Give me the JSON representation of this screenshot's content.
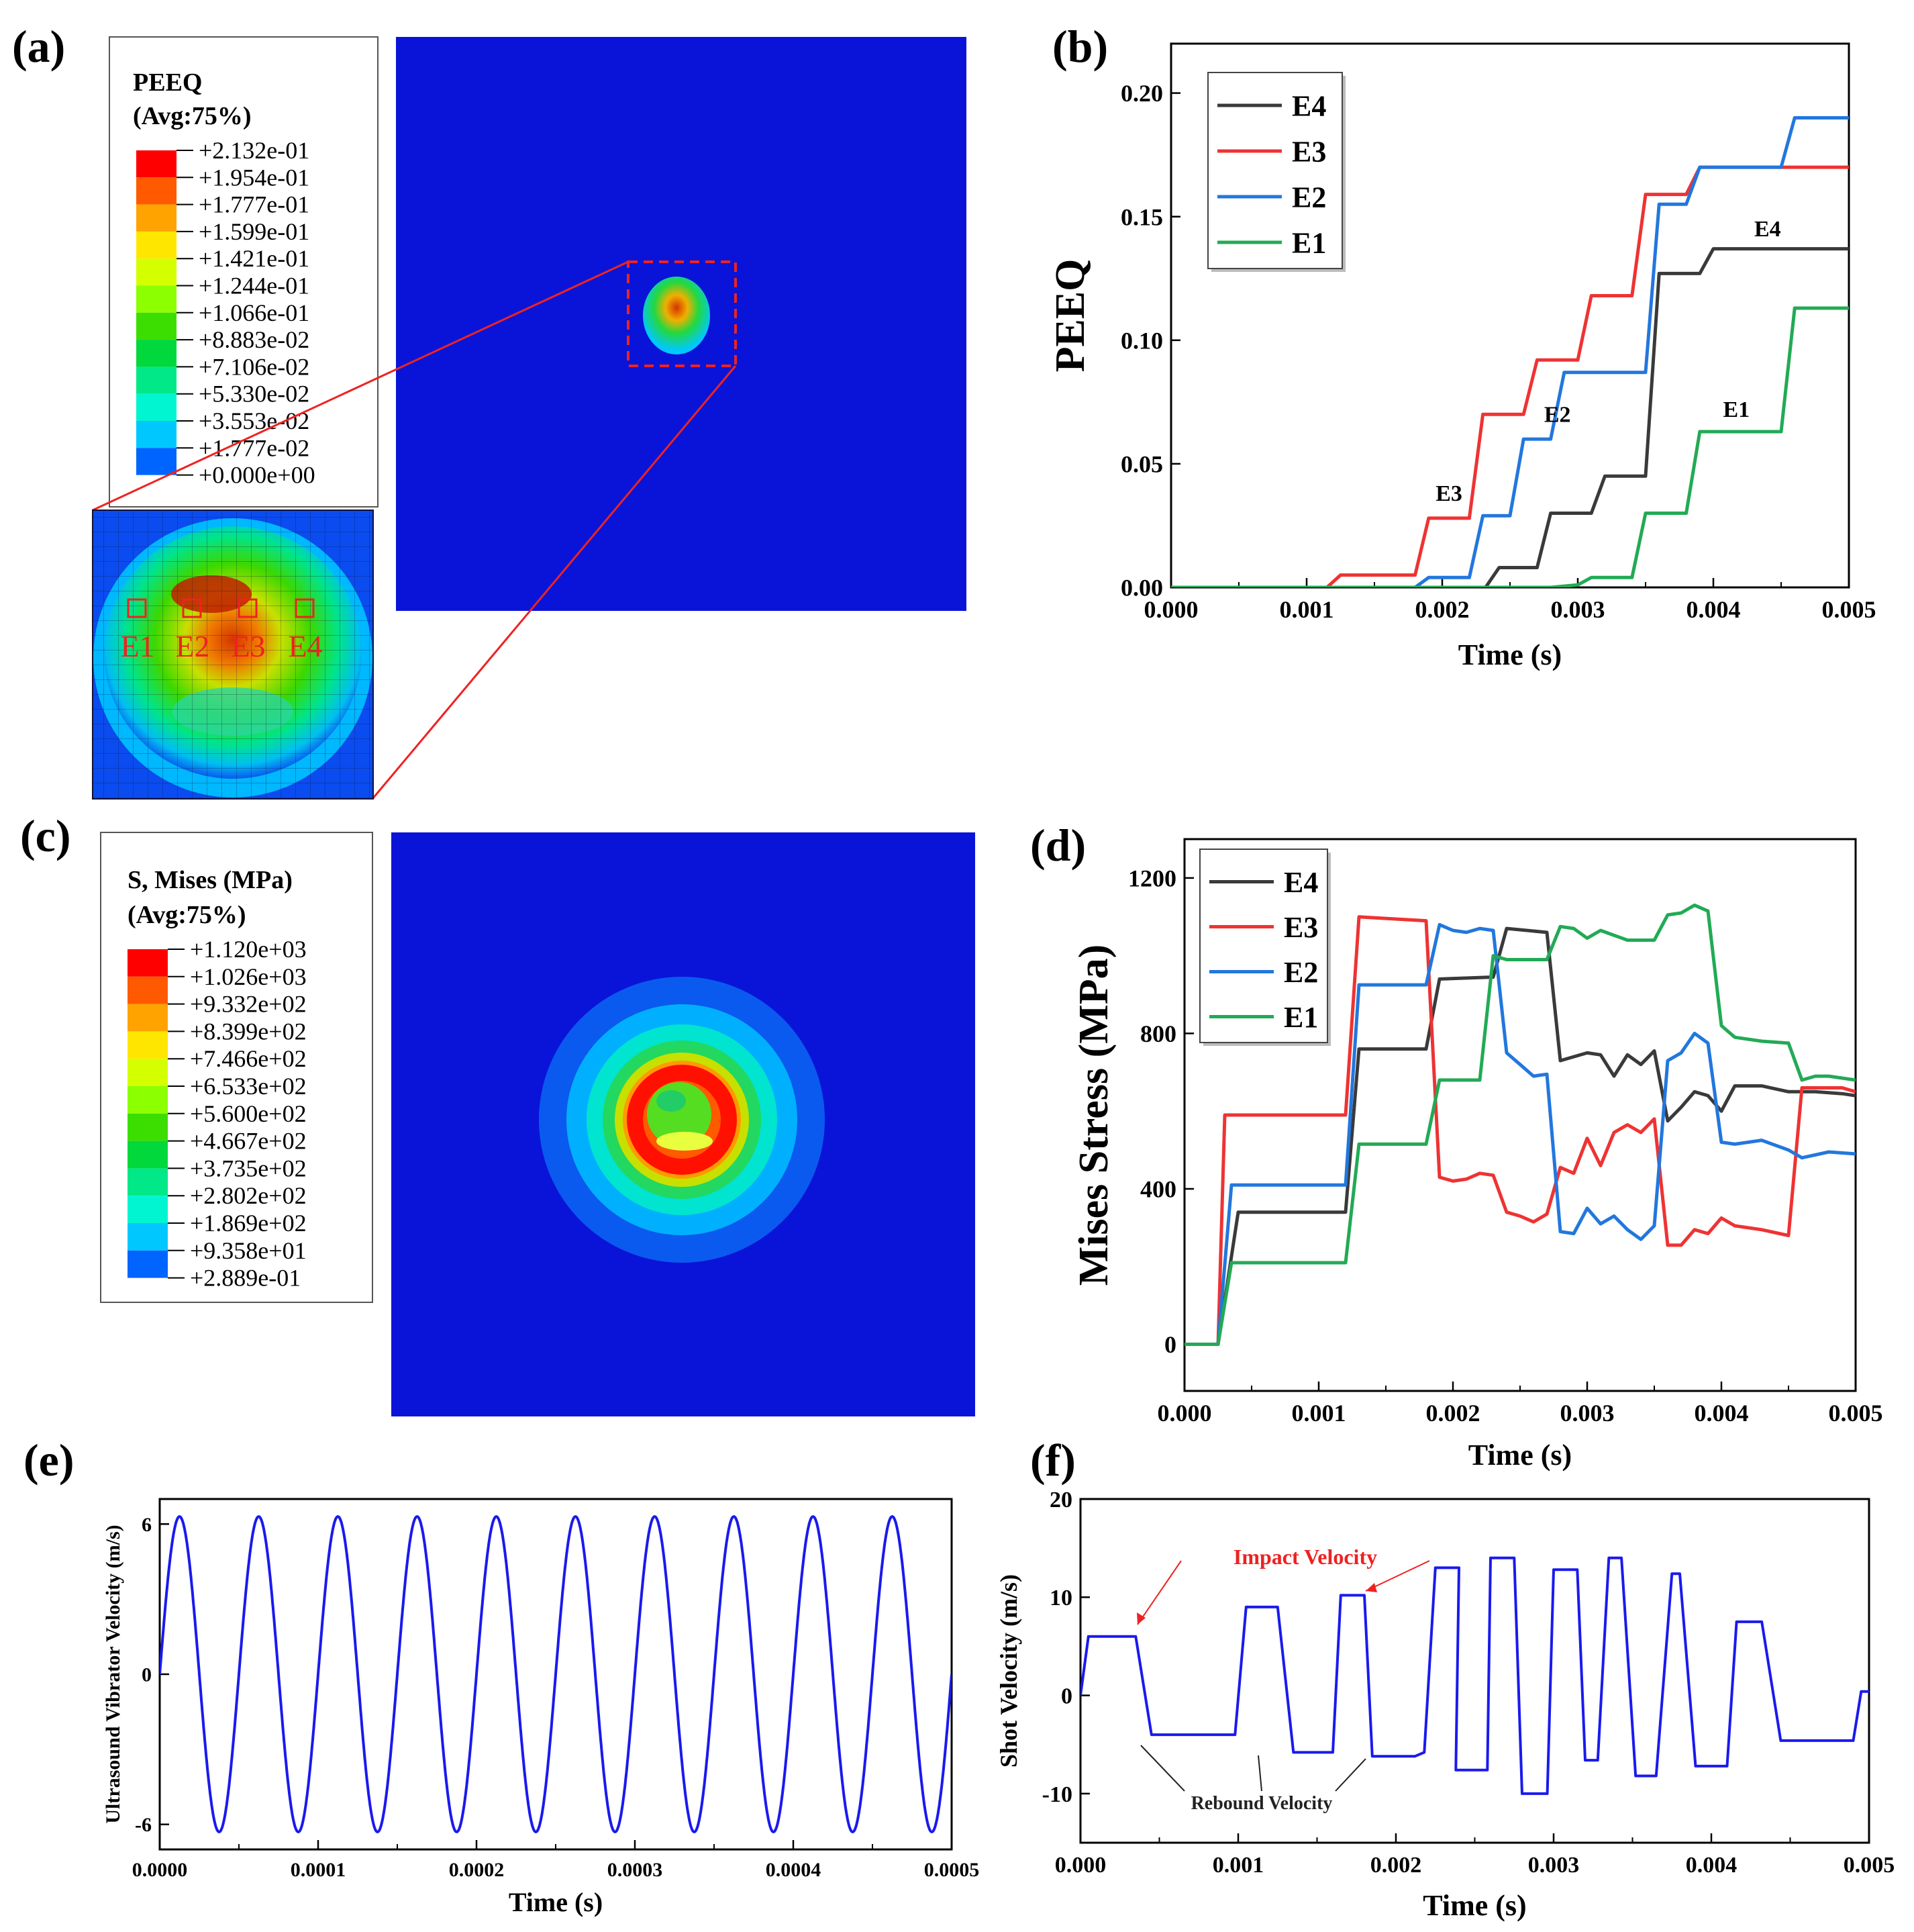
{
  "colors": {
    "E4": "#3a3a3a",
    "E3": "#ee3333",
    "E2": "#2277dd",
    "E1": "#22aa55",
    "wave": "#1a1aee",
    "contour_bg": "#0a14d8",
    "annotation_red": "#ee2222"
  },
  "panels": {
    "a": {
      "label": "(a)",
      "legend_title_1": "PEEQ",
      "legend_title_2": "(Avg:75%)",
      "contour_values": [
        "+2.132e-01",
        "+1.954e-01",
        "+1.777e-01",
        "+1.599e-01",
        "+1.421e-01",
        "+1.244e-01",
        "+1.066e-01",
        "+8.883e-02",
        "+7.106e-02",
        "+5.330e-02",
        "+3.553e-02",
        "+1.777e-02",
        "+0.000e+00"
      ],
      "contour_colors": [
        "#ff0000",
        "#ff5a00",
        "#ffa300",
        "#ffe600",
        "#d4ff00",
        "#8cff00",
        "#3cdd00",
        "#00d83c",
        "#00e887",
        "#00f5d0",
        "#00c8ff",
        "#0064ff",
        "#0000ff"
      ],
      "element_labels": [
        "E1",
        "E2",
        "E3",
        "E4"
      ]
    },
    "c": {
      "label": "(c)",
      "legend_title_1": "S, Mises (MPa)",
      "legend_title_2": "(Avg:75%)",
      "contour_values": [
        "+1.120e+03",
        "+1.026e+03",
        "+9.332e+02",
        "+8.399e+02",
        "+7.466e+02",
        "+6.533e+02",
        "+5.600e+02",
        "+4.667e+02",
        "+3.735e+02",
        "+2.802e+02",
        "+1.869e+02",
        "+9.358e+01",
        "+2.889e-01"
      ],
      "contour_colors": [
        "#ff0000",
        "#ff5a00",
        "#ffa300",
        "#ffe600",
        "#d4ff00",
        "#8cff00",
        "#3cdd00",
        "#00d83c",
        "#00e887",
        "#00f5d0",
        "#00c8ff",
        "#0064ff",
        "#0000ff"
      ]
    }
  },
  "chart_data": [
    {
      "id": "b",
      "panel_label": "(b)",
      "type": "line",
      "xlabel": "Time (s)",
      "ylabel": "PEEQ",
      "xlim": [
        0,
        0.005
      ],
      "ylim": [
        0,
        0.22
      ],
      "xticks": [
        "0.000",
        "0.001",
        "0.002",
        "0.003",
        "0.004",
        "0.005"
      ],
      "yticks": [
        "0.00",
        "0.05",
        "0.10",
        "0.15",
        "0.20"
      ],
      "legend": "top-left",
      "series": [
        {
          "name": "E4",
          "x": [
            0,
            0.00232,
            0.00242,
            0.0025,
            0.0027,
            0.0028,
            0.0031,
            0.0032,
            0.0035,
            0.0036,
            0.0039,
            0.004,
            0.0045,
            0.005
          ],
          "y": [
            0,
            0,
            0.008,
            0.008,
            0.008,
            0.03,
            0.03,
            0.045,
            0.045,
            0.127,
            0.127,
            0.137,
            0.137,
            0.137
          ]
        },
        {
          "name": "E3",
          "x": [
            0,
            0.00115,
            0.00125,
            0.0018,
            0.0019,
            0.0022,
            0.0023,
            0.0026,
            0.0027,
            0.003,
            0.0031,
            0.0034,
            0.0035,
            0.0038,
            0.0039,
            0.0045,
            0.005
          ],
          "y": [
            0,
            0,
            0.005,
            0.005,
            0.028,
            0.028,
            0.07,
            0.07,
            0.092,
            0.092,
            0.118,
            0.118,
            0.159,
            0.159,
            0.17,
            0.17,
            0.17
          ]
        },
        {
          "name": "E2",
          "x": [
            0,
            0.0018,
            0.0019,
            0.0022,
            0.0023,
            0.0025,
            0.0026,
            0.0028,
            0.0029,
            0.0031,
            0.0032,
            0.0035,
            0.0036,
            0.0038,
            0.0039,
            0.0045,
            0.0046,
            0.005
          ],
          "y": [
            0,
            0,
            0.004,
            0.004,
            0.029,
            0.029,
            0.06,
            0.06,
            0.087,
            0.087,
            0.087,
            0.087,
            0.155,
            0.155,
            0.17,
            0.17,
            0.19,
            0.19
          ]
        },
        {
          "name": "E1",
          "x": [
            0,
            0.0028,
            0.003,
            0.0031,
            0.0034,
            0.0035,
            0.0038,
            0.0039,
            0.0045,
            0.0046,
            0.005
          ],
          "y": [
            0,
            0,
            0.001,
            0.004,
            0.004,
            0.03,
            0.03,
            0.063,
            0.063,
            0.113,
            0.113
          ]
        }
      ],
      "annotations": [
        {
          "text": "E3",
          "x": 0.00205,
          "y": 0.035
        },
        {
          "text": "E2",
          "x": 0.00285,
          "y": 0.067
        },
        {
          "text": "E4",
          "x": 0.0044,
          "y": 0.142
        },
        {
          "text": "E1",
          "x": 0.00417,
          "y": 0.069
        }
      ]
    },
    {
      "id": "d",
      "panel_label": "(d)",
      "type": "line",
      "xlabel": "Time (s)",
      "ylabel": "Mises Stress (MPa)",
      "xlim": [
        0,
        0.005
      ],
      "ylim": [
        -120,
        1300
      ],
      "xticks": [
        "0.000",
        "0.001",
        "0.002",
        "0.003",
        "0.004",
        "0.005"
      ],
      "yticks": [
        "0",
        "400",
        "800",
        "1200"
      ],
      "legend": "top-left",
      "series": [
        {
          "name": "E4",
          "x": [
            0,
            0.00025,
            0.0004,
            0.0012,
            0.0013,
            0.0018,
            0.0019,
            0.0023,
            0.0024,
            0.0027,
            0.0028,
            0.003,
            0.0031,
            0.0032,
            0.0033,
            0.0034,
            0.0035,
            0.0036,
            0.0037,
            0.0038,
            0.0039,
            0.004,
            0.0041,
            0.0043,
            0.0045,
            0.0047,
            0.0049,
            0.005
          ],
          "y": [
            0,
            0,
            340,
            340,
            760,
            760,
            940,
            945,
            1070,
            1060,
            730,
            750,
            745,
            690,
            745,
            720,
            755,
            575,
            610,
            650,
            640,
            600,
            665,
            665,
            650,
            650,
            645,
            640
          ]
        },
        {
          "name": "E3",
          "x": [
            0,
            0.00025,
            0.0003,
            0.0012,
            0.0013,
            0.0018,
            0.0019,
            0.002,
            0.0021,
            0.0022,
            0.0023,
            0.0024,
            0.0025,
            0.0026,
            0.0027,
            0.0028,
            0.0029,
            0.003,
            0.0031,
            0.0032,
            0.0033,
            0.0034,
            0.0035,
            0.0036,
            0.0037,
            0.0038,
            0.0039,
            0.004,
            0.0041,
            0.0043,
            0.0045,
            0.0046,
            0.0047,
            0.0049,
            0.005
          ],
          "y": [
            0,
            0,
            590,
            590,
            1100,
            1090,
            430,
            420,
            425,
            440,
            435,
            340,
            330,
            315,
            335,
            455,
            440,
            530,
            460,
            545,
            565,
            545,
            580,
            255,
            255,
            295,
            285,
            325,
            305,
            295,
            280,
            660,
            660,
            660,
            650
          ]
        },
        {
          "name": "E2",
          "x": [
            0,
            0.00025,
            0.00035,
            0.0012,
            0.0013,
            0.0018,
            0.0019,
            0.002,
            0.0021,
            0.0022,
            0.0023,
            0.0024,
            0.0025,
            0.0026,
            0.0027,
            0.0028,
            0.0029,
            0.003,
            0.0031,
            0.0032,
            0.0033,
            0.0034,
            0.0035,
            0.0036,
            0.0037,
            0.0038,
            0.0039,
            0.004,
            0.0041,
            0.0043,
            0.0045,
            0.0046,
            0.0048,
            0.005
          ],
          "y": [
            0,
            0,
            410,
            410,
            925,
            925,
            1080,
            1065,
            1060,
            1070,
            1065,
            750,
            720,
            690,
            695,
            290,
            285,
            350,
            310,
            330,
            295,
            270,
            305,
            730,
            750,
            800,
            775,
            520,
            515,
            525,
            500,
            480,
            495,
            490
          ]
        },
        {
          "name": "E1",
          "x": [
            0,
            0.00025,
            0.00035,
            0.0012,
            0.0013,
            0.0018,
            0.0019,
            0.0022,
            0.0023,
            0.0024,
            0.0027,
            0.0028,
            0.0029,
            0.003,
            0.0031,
            0.0033,
            0.0035,
            0.0036,
            0.0037,
            0.0038,
            0.0039,
            0.004,
            0.0041,
            0.0043,
            0.0045,
            0.0046,
            0.0047,
            0.0048,
            0.005
          ],
          "y": [
            0,
            0,
            210,
            210,
            515,
            515,
            680,
            680,
            1000,
            990,
            990,
            1075,
            1070,
            1045,
            1065,
            1040,
            1040,
            1105,
            1110,
            1130,
            1115,
            820,
            790,
            780,
            775,
            680,
            690,
            690,
            680
          ]
        }
      ]
    },
    {
      "id": "e",
      "panel_label": "(e)",
      "type": "line",
      "xlabel": "Time (s)",
      "ylabel": "Ultrasound Vibrator Velocity (m/s)",
      "xlim": [
        0,
        0.0005
      ],
      "ylim": [
        -7,
        7
      ],
      "xticks": [
        "0.0000",
        "0.0001",
        "0.0002",
        "0.0003",
        "0.0004",
        "0.0005"
      ],
      "yticks": [
        "-6",
        "0",
        "6"
      ],
      "function": {
        "kind": "sine",
        "amplitude": 6.3,
        "frequency_hz": 20000
      },
      "series": [
        {
          "name": "",
          "values": []
        }
      ]
    },
    {
      "id": "f",
      "panel_label": "(f)",
      "type": "line",
      "xlabel": "Time (s)",
      "ylabel": "Shot Velocity (m/s)",
      "xlim": [
        0,
        0.005
      ],
      "ylim": [
        -15,
        20
      ],
      "xticks": [
        "0.000",
        "0.001",
        "0.002",
        "0.003",
        "0.004",
        "0.005"
      ],
      "yticks": [
        "-10",
        "0",
        "10",
        "20"
      ],
      "series": [
        {
          "name": "",
          "x": [
            0,
            5e-05,
            0.00035,
            0.00045,
            0.00098,
            0.00105,
            0.00125,
            0.00135,
            0.0016,
            0.00165,
            0.0018,
            0.00185,
            0.00212,
            0.00218,
            0.00225,
            0.0024,
            0.00238,
            0.00258,
            0.0026,
            0.00275,
            0.0028,
            0.00296,
            0.003,
            0.00315,
            0.0032,
            0.00328,
            0.00335,
            0.00343,
            0.00352,
            0.0036,
            0.00365,
            0.00375,
            0.0038,
            0.0039,
            0.00395,
            0.0041,
            0.00416,
            0.00432,
            0.00444,
            0.00455,
            0.00462,
            0.0049,
            0.00495,
            0.005
          ],
          "y": [
            0,
            6,
            6,
            -4,
            -4,
            9,
            9,
            -5.8,
            -5.8,
            10.2,
            10.2,
            -6.2,
            -6.2,
            -5.8,
            13,
            13,
            -7.6,
            -7.6,
            14,
            14,
            -10,
            -10,
            12.8,
            12.8,
            -6.6,
            -6.6,
            14,
            14,
            -8.2,
            -8.2,
            -8.2,
            12.4,
            12.4,
            -7.2,
            -7.2,
            -7.2,
            7.5,
            7.5,
            -4.6,
            -4.6,
            -4.6,
            -4.6,
            0.4,
            0.4
          ]
        }
      ],
      "annotations": [
        {
          "text": "Impact Velocity",
          "color": "red"
        },
        {
          "text": "Rebound Velocity",
          "color": "black"
        }
      ]
    }
  ]
}
